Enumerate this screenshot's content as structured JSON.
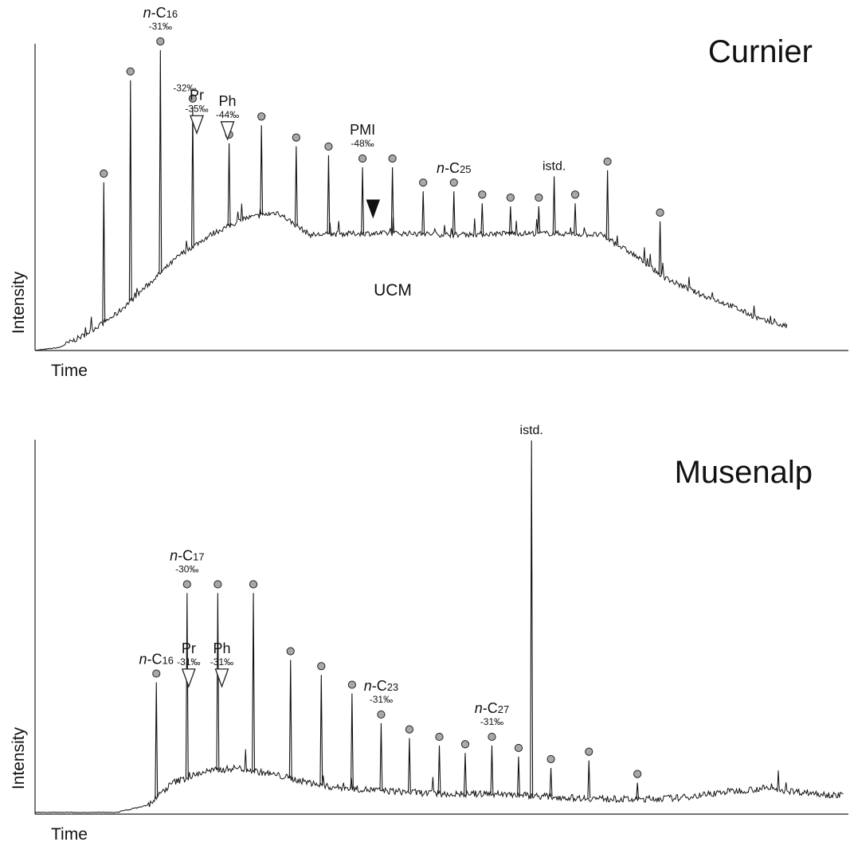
{
  "chart_data": [
    {
      "type": "line",
      "chart_kind": "gas chromatogram",
      "title": "Curnier",
      "xlabel": "Time",
      "ylabel": "Intensity",
      "ylim": [
        0,
        1
      ],
      "grid": false,
      "ucm_label": "UCM",
      "baseline": {
        "x": [
          0.0,
          0.03,
          0.06,
          0.1,
          0.14,
          0.18,
          0.22,
          0.26,
          0.3,
          0.34,
          0.4,
          0.46,
          0.52,
          0.58,
          0.64,
          0.7,
          0.74,
          0.78,
          0.82,
          0.86,
          0.9,
          0.93
        ],
        "y": [
          0.0,
          0.01,
          0.05,
          0.12,
          0.22,
          0.32,
          0.39,
          0.44,
          0.46,
          0.385,
          0.39,
          0.39,
          0.385,
          0.39,
          0.39,
          0.385,
          0.32,
          0.24,
          0.19,
          0.15,
          0.1,
          0.08
        ]
      },
      "peaks": [
        {
          "x": 0.085,
          "h": 0.56,
          "marker": "circle"
        },
        {
          "x": 0.118,
          "h": 0.9,
          "marker": "circle"
        },
        {
          "x": 0.155,
          "h": 1.0,
          "marker": "circle",
          "label": "n-C16",
          "value": "-31‰"
        },
        {
          "x": 0.195,
          "h": 0.81,
          "marker": "circle",
          "value_left": "-32‰"
        },
        {
          "x": 0.2,
          "h": 0.75,
          "marker": "open-triangle",
          "label": "Pr",
          "value": "-35‰"
        },
        {
          "x": 0.238,
          "h": 0.73,
          "marker": "open-triangle",
          "label": "Ph",
          "value": "-44‰"
        },
        {
          "x": 0.24,
          "h": 0.69,
          "marker": "circle"
        },
        {
          "x": 0.28,
          "h": 0.75,
          "marker": "circle"
        },
        {
          "x": 0.323,
          "h": 0.68,
          "marker": "circle"
        },
        {
          "x": 0.363,
          "h": 0.65,
          "marker": "circle"
        },
        {
          "x": 0.405,
          "h": 0.61,
          "marker": "circle",
          "label": "PMI",
          "value": "-48‰"
        },
        {
          "x": 0.442,
          "h": 0.61,
          "marker": "circle"
        },
        {
          "x": 0.48,
          "h": 0.53,
          "marker": "circle"
        },
        {
          "x": 0.518,
          "h": 0.53,
          "marker": "circle",
          "label": "n-C25"
        },
        {
          "x": 0.553,
          "h": 0.49,
          "marker": "circle"
        },
        {
          "x": 0.588,
          "h": 0.48,
          "marker": "circle"
        },
        {
          "x": 0.623,
          "h": 0.48,
          "marker": "circle"
        },
        {
          "x": 0.642,
          "h": 0.58,
          "marker": "none",
          "label": "istd."
        },
        {
          "x": 0.668,
          "h": 0.49,
          "marker": "circle"
        },
        {
          "x": 0.708,
          "h": 0.6,
          "marker": "circle"
        },
        {
          "x": 0.773,
          "h": 0.43,
          "marker": "circle"
        }
      ],
      "pmi_marker": {
        "x": 0.418,
        "marker": "filled-triangle"
      }
    },
    {
      "type": "line",
      "chart_kind": "gas chromatogram",
      "title": "Musenalp",
      "xlabel": "Time",
      "ylabel": "Intensity",
      "ylim": [
        0,
        1
      ],
      "grid": false,
      "baseline": {
        "x": [
          0.0,
          0.1,
          0.14,
          0.17,
          0.21,
          0.25,
          0.3,
          0.36,
          0.42,
          0.5,
          0.58,
          0.66,
          0.74,
          0.8,
          0.85,
          0.9,
          0.95,
          1.0
        ],
        "y": [
          0.0,
          0.0,
          0.02,
          0.08,
          0.11,
          0.12,
          0.1,
          0.07,
          0.06,
          0.05,
          0.05,
          0.04,
          0.035,
          0.04,
          0.055,
          0.065,
          0.055,
          0.045
        ]
      },
      "peaks": [
        {
          "x": 0.15,
          "h": 0.35,
          "marker": "circle",
          "label": "n-C16"
        },
        {
          "x": 0.188,
          "h": 0.59,
          "marker": "circle",
          "label": "n-C17",
          "value": "-30‰"
        },
        {
          "x": 0.19,
          "h": 0.36,
          "marker": "open-triangle",
          "label": "Pr",
          "value": "-31‰"
        },
        {
          "x": 0.226,
          "h": 0.59,
          "marker": "circle"
        },
        {
          "x": 0.231,
          "h": 0.36,
          "marker": "open-triangle",
          "label": "Ph",
          "value": "-31‰"
        },
        {
          "x": 0.27,
          "h": 0.59,
          "marker": "circle"
        },
        {
          "x": 0.316,
          "h": 0.41,
          "marker": "circle"
        },
        {
          "x": 0.354,
          "h": 0.37,
          "marker": "circle"
        },
        {
          "x": 0.392,
          "h": 0.32,
          "marker": "circle"
        },
        {
          "x": 0.428,
          "h": 0.24,
          "marker": "circle",
          "label": "n-C23",
          "value": "-31‰"
        },
        {
          "x": 0.463,
          "h": 0.2,
          "marker": "circle"
        },
        {
          "x": 0.5,
          "h": 0.18,
          "marker": "circle"
        },
        {
          "x": 0.532,
          "h": 0.16,
          "marker": "circle"
        },
        {
          "x": 0.565,
          "h": 0.18,
          "marker": "circle",
          "label": "n-C27",
          "value": "-31‰"
        },
        {
          "x": 0.598,
          "h": 0.15,
          "marker": "circle"
        },
        {
          "x": 0.614,
          "h": 1.0,
          "marker": "none",
          "label": "istd."
        },
        {
          "x": 0.638,
          "h": 0.12,
          "marker": "circle"
        },
        {
          "x": 0.685,
          "h": 0.14,
          "marker": "circle"
        },
        {
          "x": 0.745,
          "h": 0.08,
          "marker": "circle"
        }
      ]
    }
  ]
}
